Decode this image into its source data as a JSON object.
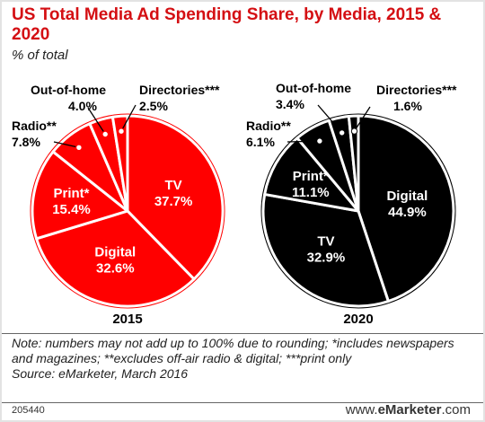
{
  "title": "US Total Media Ad Spending Share, by Media, 2015 & 2020",
  "subtitle": "% of total",
  "notes": "Note: numbers may not add up to 100% due to rounding; *includes newspapers and magazines; **excludes off-air radio & digital; ***print only",
  "source": "Source: eMarketer, March 2016",
  "chart_code": "205440",
  "brand": {
    "prefix": "www.",
    "name": "eMarketer",
    "suffix": ".com"
  },
  "colors": {
    "accent": "#d40f13",
    "pie_2015": "#ff0000",
    "pie_2020": "#000000",
    "separator": "#ffffff"
  },
  "chart_data": [
    {
      "type": "pie",
      "title": "2015",
      "slices": [
        {
          "label": "TV",
          "value": 37.7
        },
        {
          "label": "Digital",
          "value": 32.6
        },
        {
          "label": "Print*",
          "value": 15.4
        },
        {
          "label": "Radio**",
          "value": 7.8
        },
        {
          "label": "Out-of-home",
          "value": 4.0
        },
        {
          "label": "Directories***",
          "value": 2.5
        }
      ]
    },
    {
      "type": "pie",
      "title": "2020",
      "slices": [
        {
          "label": "Digital",
          "value": 44.9
        },
        {
          "label": "TV",
          "value": 32.9
        },
        {
          "label": "Print*",
          "value": 11.1
        },
        {
          "label": "Radio**",
          "value": 6.1
        },
        {
          "label": "Out-of-home",
          "value": 3.4
        },
        {
          "label": "Directories***",
          "value": 1.6
        }
      ]
    }
  ]
}
